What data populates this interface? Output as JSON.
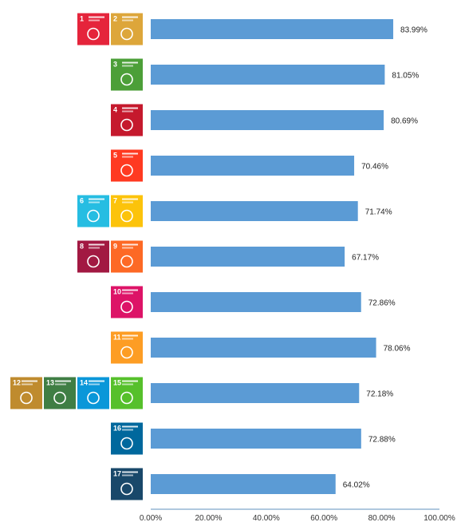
{
  "chart_data": {
    "type": "bar",
    "orientation": "horizontal",
    "categories": [
      "SDG 1-2",
      "SDG 3",
      "SDG 4",
      "SDG 5",
      "SDG 6-7",
      "SDG 8-9",
      "SDG 10",
      "SDG 11",
      "SDG 12-15",
      "SDG 16",
      "SDG 17"
    ],
    "category_icons": [
      [
        {
          "goal": "1",
          "color": "#e5243b"
        },
        {
          "goal": "2",
          "color": "#dda63a"
        }
      ],
      [
        {
          "goal": "3",
          "color": "#4c9f38"
        }
      ],
      [
        {
          "goal": "4",
          "color": "#c5192d"
        }
      ],
      [
        {
          "goal": "5",
          "color": "#ff3a21"
        }
      ],
      [
        {
          "goal": "6",
          "color": "#26bde2"
        },
        {
          "goal": "7",
          "color": "#fcc30b"
        }
      ],
      [
        {
          "goal": "8",
          "color": "#a21942"
        },
        {
          "goal": "9",
          "color": "#fd6925"
        }
      ],
      [
        {
          "goal": "10",
          "color": "#dd1367"
        }
      ],
      [
        {
          "goal": "11",
          "color": "#fd9d24"
        }
      ],
      [
        {
          "goal": "12",
          "color": "#bf8b2e"
        },
        {
          "goal": "13",
          "color": "#3f7e44"
        },
        {
          "goal": "14",
          "color": "#0a97d9"
        },
        {
          "goal": "15",
          "color": "#56c02b"
        }
      ],
      [
        {
          "goal": "16",
          "color": "#00689d"
        }
      ],
      [
        {
          "goal": "17",
          "color": "#19486a"
        }
      ]
    ],
    "values": [
      83.99,
      81.05,
      80.69,
      70.46,
      71.74,
      67.17,
      72.86,
      78.06,
      72.18,
      72.88,
      64.02
    ],
    "value_labels": [
      "83.99%",
      "81.05%",
      "80.69%",
      "70.46%",
      "71.74%",
      "67.17%",
      "72.86%",
      "78.06%",
      "72.18%",
      "72.88%",
      "64.02%"
    ],
    "xlim": [
      0,
      100
    ],
    "x_ticks": [
      0,
      20,
      40,
      60,
      80,
      100
    ],
    "x_tick_labels": [
      "0.00%",
      "20.00%",
      "40.00%",
      "60.00%",
      "80.00%",
      "100.00%"
    ],
    "bar_color": "#5b9bd5",
    "axis_color": "#7fa7c9",
    "grid": false,
    "legend": "none"
  }
}
